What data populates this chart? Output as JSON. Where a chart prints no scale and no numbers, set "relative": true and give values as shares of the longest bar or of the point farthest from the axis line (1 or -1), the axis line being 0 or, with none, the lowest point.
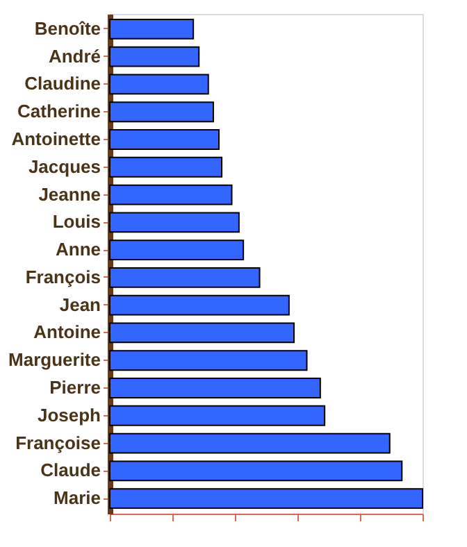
{
  "chart_data": {
    "type": "bar",
    "orientation": "horizontal",
    "relative": true,
    "color": "#3366ff",
    "categories": [
      "Benoîte",
      "André",
      "Claudine",
      "Catherine",
      "Antoinette",
      "Jacques",
      "Jeanne",
      "Louis",
      "Anne",
      "François",
      "Jean",
      "Antoine",
      "Marguerite",
      "Pierre",
      "Joseph",
      "Françoise",
      "Claude",
      "Marie"
    ],
    "values": [
      0.267,
      0.285,
      0.315,
      0.331,
      0.349,
      0.358,
      0.39,
      0.413,
      0.427,
      0.479,
      0.573,
      0.589,
      0.63,
      0.673,
      0.687,
      0.895,
      0.934,
      1
    ]
  }
}
